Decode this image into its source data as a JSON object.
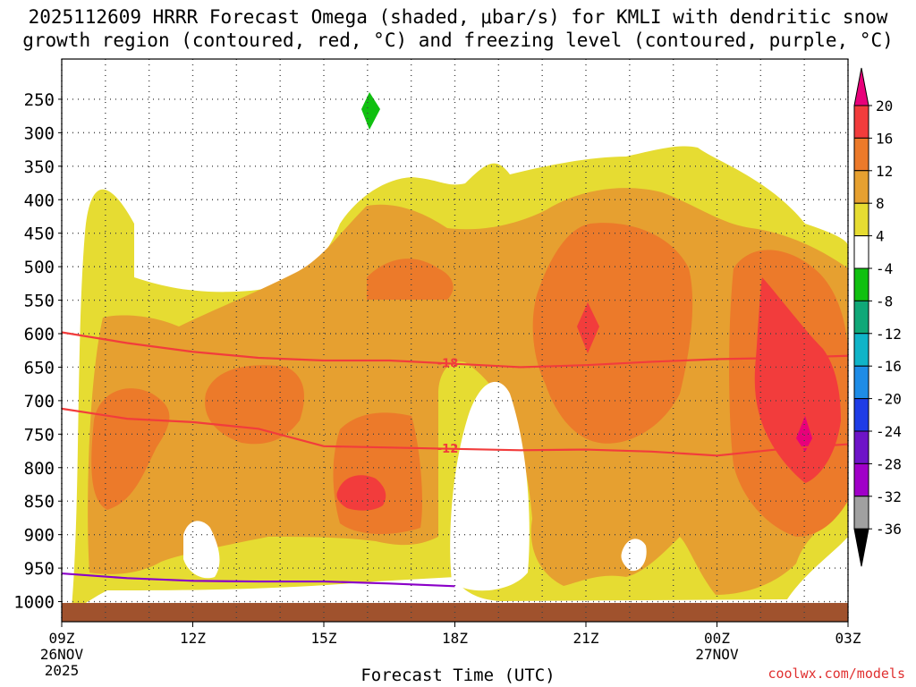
{
  "title": {
    "line1": "2025112609 HRRR Forecast Omega (shaded, μbar/s) for KMLI with dendritic snow",
    "line2": "growth region (contoured, red, °C) and freezing level (contoured, purple, °C)"
  },
  "credit": "coolwx.com/models",
  "chart_data": {
    "type": "contour",
    "title": "2025112609 HRRR Forecast Omega (shaded, μbar/s) for KMLI with dendritic snow growth region (contoured, red, °C) and freezing level (contoured, purple, °C)",
    "xlabel": "Forecast Time (UTC)",
    "ylabel": "",
    "x_ticks": [
      {
        "label": "09Z",
        "sub": [
          "26NOV",
          "2025"
        ],
        "hour": 0
      },
      {
        "label": "12Z",
        "sub": [],
        "hour": 3
      },
      {
        "label": "15Z",
        "sub": [],
        "hour": 6
      },
      {
        "label": "18Z",
        "sub": [],
        "hour": 9
      },
      {
        "label": "21Z",
        "sub": [],
        "hour": 12
      },
      {
        "label": "00Z",
        "sub": [
          "27NOV"
        ],
        "hour": 15
      },
      {
        "label": "03Z",
        "sub": [],
        "hour": 18
      }
    ],
    "xlim": [
      0,
      18
    ],
    "y_ticks": [
      250,
      300,
      350,
      400,
      450,
      500,
      550,
      600,
      650,
      700,
      750,
      800,
      850,
      900,
      950,
      1000
    ],
    "ylim_hpa": [
      1030,
      190
    ],
    "colorbar": {
      "labels": [
        "20",
        "16",
        "12",
        "8",
        "4",
        "-4",
        "-8",
        "-12",
        "-16",
        "-20",
        "-24",
        "-28",
        "-32",
        "-36"
      ],
      "colors": [
        "#e8007a",
        "#f23c3c",
        "#ec7a2a",
        "#e6a030",
        "#e6dc32",
        "#ffffff",
        "#10c010",
        "#10a878",
        "#10b4c8",
        "#1e8ce6",
        "#1e3ce6",
        "#6e14c8",
        "#a000c8",
        "#a0a0a0",
        "#000000"
      ]
    },
    "contours": [
      {
        "name": "-18",
        "color": "#f23c3c",
        "label": "-18",
        "points": [
          [
            0,
            598
          ],
          [
            1.5,
            614
          ],
          [
            3,
            627
          ],
          [
            4.5,
            636
          ],
          [
            6,
            640
          ],
          [
            7.5,
            640
          ],
          [
            9,
            645
          ],
          [
            10.5,
            650
          ],
          [
            12,
            647
          ],
          [
            13.5,
            642
          ],
          [
            15,
            638
          ],
          [
            16.5,
            636
          ],
          [
            18,
            633
          ]
        ]
      },
      {
        "name": "-12",
        "color": "#f23c3c",
        "label": "-12",
        "points": [
          [
            0,
            712
          ],
          [
            1.5,
            727
          ],
          [
            3,
            732
          ],
          [
            4.5,
            742
          ],
          [
            6,
            768
          ],
          [
            7.5,
            770
          ],
          [
            9,
            772
          ],
          [
            10.5,
            774
          ],
          [
            12,
            773
          ],
          [
            13.5,
            776
          ],
          [
            15,
            782
          ],
          [
            16.5,
            772
          ],
          [
            18,
            765
          ]
        ]
      },
      {
        "name": "freezing",
        "color": "#8a00c8",
        "label": "",
        "points": [
          [
            0,
            958
          ],
          [
            1.5,
            965
          ],
          [
            3,
            969
          ],
          [
            4.5,
            970
          ],
          [
            6,
            970
          ],
          [
            7.5,
            973
          ],
          [
            9,
            977
          ]
        ]
      }
    ]
  }
}
